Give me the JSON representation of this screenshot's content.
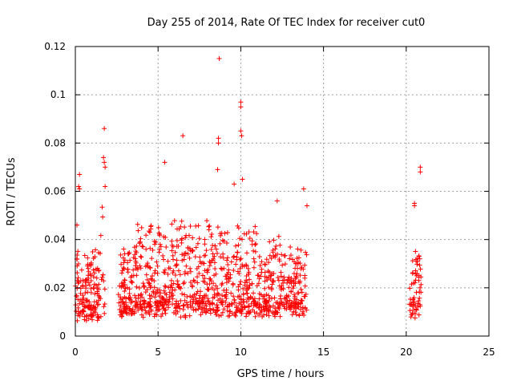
{
  "chart_data": {
    "type": "scatter",
    "title": "Day 255 of 2014, Rate Of TEC Index for receiver cut0",
    "xlabel": "GPS time / hours",
    "ylabel": "ROTI / TECUs",
    "xlim": [
      0,
      25
    ],
    "ylim": [
      0,
      0.12
    ],
    "x_ticks": [
      0,
      5,
      10,
      15,
      20,
      25
    ],
    "x_tick_labels": [
      "0",
      "5",
      "10",
      "15",
      "20",
      "25"
    ],
    "y_ticks": [
      0,
      0.02,
      0.04,
      0.06,
      0.08,
      0.1,
      0.12
    ],
    "y_tick_labels": [
      "0",
      "0.02",
      "0.04",
      "0.06",
      "0.08",
      "0.1",
      "0.12"
    ],
    "grid": true,
    "marker": "+",
    "marker_color": "#ff0000",
    "activity_segments": [
      {
        "x_start": 0.0,
        "x_end": 1.8,
        "baseline": 0.012
      },
      {
        "x_start": 2.6,
        "x_end": 14.0,
        "baseline": 0.015
      },
      {
        "x_start": 20.2,
        "x_end": 20.9,
        "baseline": 0.014
      }
    ],
    "notable_points": [
      {
        "x": 8.7,
        "y": 0.115
      },
      {
        "x": 10.0,
        "y": 0.097
      },
      {
        "x": 10.0,
        "y": 0.095
      },
      {
        "x": 1.75,
        "y": 0.086
      },
      {
        "x": 10.0,
        "y": 0.085
      },
      {
        "x": 10.05,
        "y": 0.083
      },
      {
        "x": 6.5,
        "y": 0.083
      },
      {
        "x": 8.65,
        "y": 0.082
      },
      {
        "x": 8.65,
        "y": 0.08
      },
      {
        "x": 1.7,
        "y": 0.074
      },
      {
        "x": 1.75,
        "y": 0.072
      },
      {
        "x": 5.4,
        "y": 0.072
      },
      {
        "x": 1.8,
        "y": 0.07
      },
      {
        "x": 20.85,
        "y": 0.07
      },
      {
        "x": 8.6,
        "y": 0.069
      },
      {
        "x": 20.85,
        "y": 0.068
      },
      {
        "x": 0.25,
        "y": 0.067
      },
      {
        "x": 10.1,
        "y": 0.065
      },
      {
        "x": 9.6,
        "y": 0.063
      },
      {
        "x": 1.8,
        "y": 0.062
      },
      {
        "x": 0.2,
        "y": 0.062
      },
      {
        "x": 0.25,
        "y": 0.061
      },
      {
        "x": 13.8,
        "y": 0.061
      },
      {
        "x": 12.2,
        "y": 0.056
      },
      {
        "x": 20.5,
        "y": 0.055
      },
      {
        "x": 20.5,
        "y": 0.054
      },
      {
        "x": 14.0,
        "y": 0.054
      },
      {
        "x": 0.1,
        "y": 0.046
      }
    ]
  }
}
